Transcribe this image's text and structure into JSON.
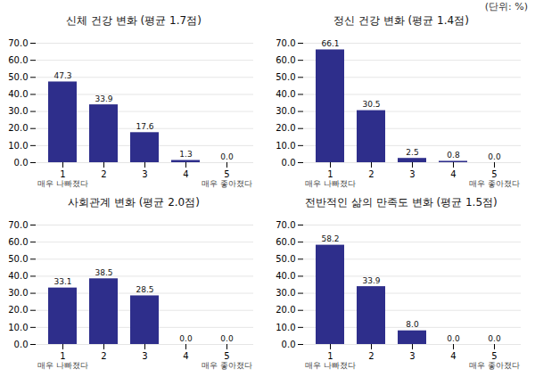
{
  "annotations": [
    "(단위: %)"
  ],
  "chart_data": [
    {
      "type": "bar",
      "title": "신체 건강 변화 (평균 1.7점)",
      "categories": [
        "1",
        "2",
        "3",
        "4",
        "5"
      ],
      "values": [
        47.3,
        33.9,
        17.6,
        1.3,
        0.0
      ],
      "value_labels": [
        "47.3",
        "33.9",
        "17.6",
        "1.3",
        "0.0"
      ],
      "data_labels": true,
      "color": "#2E2E8B",
      "ylim": [
        0,
        70.0
      ],
      "yticks": [
        {
          "value": 0,
          "label": "0.0"
        },
        {
          "value": 10,
          "label": "10.0"
        },
        {
          "value": 20,
          "label": "20.0"
        },
        {
          "value": 30,
          "label": "30.0"
        },
        {
          "value": 40,
          "label": "40.0"
        },
        {
          "value": 50,
          "label": "50.0"
        },
        {
          "value": 60,
          "label": "60.0"
        },
        {
          "value": 70,
          "label": "70.0"
        }
      ],
      "grid": true,
      "annotations": [
        {
          "text": "매우 나빠졌다",
          "x": "1"
        },
        {
          "text": "매우 좋아졌다",
          "x": "5"
        }
      ]
    },
    {
      "type": "bar",
      "title": "정신 건강 변화 (평균 1.4점)",
      "categories": [
        "1",
        "2",
        "3",
        "4",
        "5"
      ],
      "values": [
        66.1,
        30.5,
        2.5,
        0.8,
        0.0
      ],
      "value_labels": [
        "66.1",
        "30.5",
        "2.5",
        "0.8",
        "0.0"
      ],
      "data_labels": true,
      "color": "#2E2E8B",
      "ylim": [
        0,
        70.0
      ],
      "yticks": [
        {
          "value": 0,
          "label": "0.0"
        },
        {
          "value": 10,
          "label": "10.0"
        },
        {
          "value": 20,
          "label": "20.0"
        },
        {
          "value": 30,
          "label": "30.0"
        },
        {
          "value": 40,
          "label": "40.0"
        },
        {
          "value": 50,
          "label": "50.0"
        },
        {
          "value": 60,
          "label": "60.0"
        },
        {
          "value": 70,
          "label": "70.0"
        }
      ],
      "grid": true,
      "annotations": [
        {
          "text": "매우 나빠졌다",
          "x": "1"
        },
        {
          "text": "매우 좋아졌다",
          "x": "5"
        }
      ]
    },
    {
      "type": "bar",
      "title": "사회관계 변화 (평균 2.0점)",
      "categories": [
        "1",
        "2",
        "3",
        "4",
        "5"
      ],
      "values": [
        33.1,
        38.5,
        28.5,
        0.0,
        0.0
      ],
      "value_labels": [
        "33.1",
        "38.5",
        "28.5",
        "0.0",
        "0.0"
      ],
      "data_labels": true,
      "color": "#2E2E8B",
      "ylim": [
        0,
        70.0
      ],
      "yticks": [
        {
          "value": 0,
          "label": "0.0"
        },
        {
          "value": 10,
          "label": "10.0"
        },
        {
          "value": 20,
          "label": "20.0"
        },
        {
          "value": 30,
          "label": "30.0"
        },
        {
          "value": 40,
          "label": "40.0"
        },
        {
          "value": 50,
          "label": "50.0"
        },
        {
          "value": 60,
          "label": "60.0"
        },
        {
          "value": 70,
          "label": "70.0"
        }
      ],
      "grid": true,
      "annotations": [
        {
          "text": "매우 나빠졌다",
          "x": "1"
        },
        {
          "text": "매우 좋아졌다",
          "x": "5"
        }
      ]
    },
    {
      "type": "bar",
      "title": "전반적인 삶의 만족도 변화 (평균 1.5점)",
      "categories": [
        "1",
        "2",
        "3",
        "4",
        "5"
      ],
      "values": [
        58.2,
        33.9,
        8.0,
        0.0,
        0.0
      ],
      "value_labels": [
        "58.2",
        "33.9",
        "8.0",
        "0.0",
        "0.0"
      ],
      "data_labels": true,
      "color": "#2E2E8B",
      "ylim": [
        0,
        70.0
      ],
      "yticks": [
        {
          "value": 0,
          "label": "0.0"
        },
        {
          "value": 10,
          "label": "10.0"
        },
        {
          "value": 20,
          "label": "20.0"
        },
        {
          "value": 30,
          "label": "30.0"
        },
        {
          "value": 40,
          "label": "40.0"
        },
        {
          "value": 50,
          "label": "50.0"
        },
        {
          "value": 60,
          "label": "60.0"
        },
        {
          "value": 70,
          "label": "70.0"
        }
      ],
      "grid": true,
      "annotations": [
        {
          "text": "매우 나빠졌다",
          "x": "1"
        },
        {
          "text": "매우 좋아졌다",
          "x": "5"
        }
      ]
    }
  ]
}
